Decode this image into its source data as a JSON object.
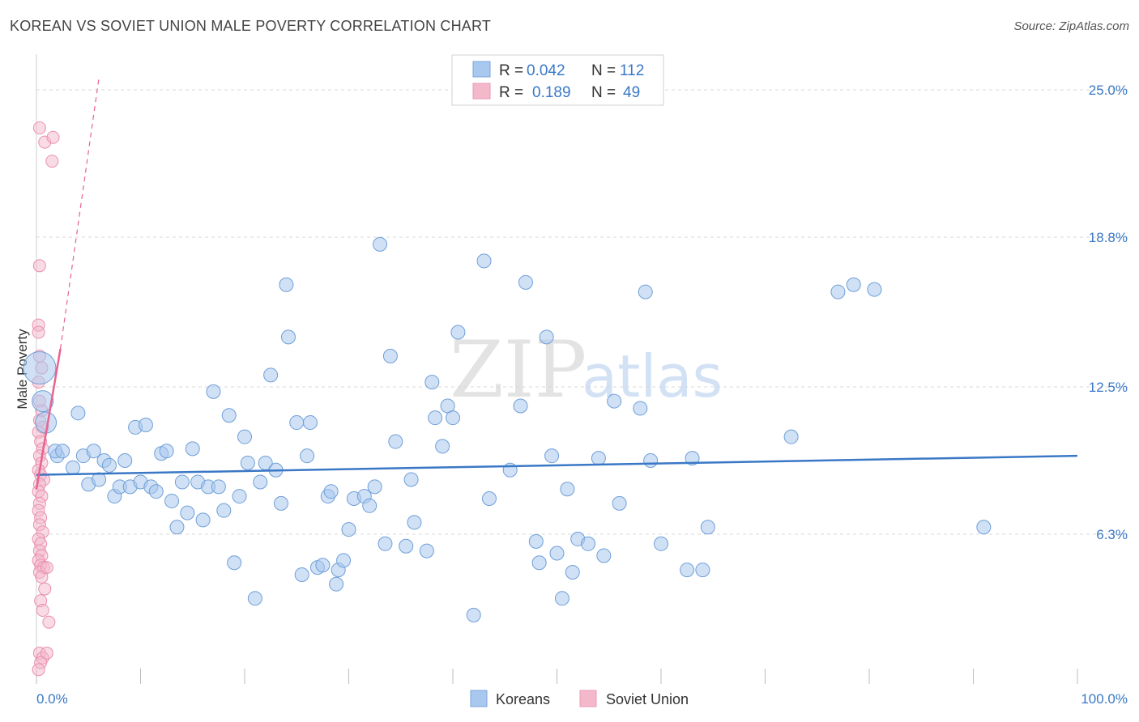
{
  "title": "KOREAN VS SOVIET UNION MALE POVERTY CORRELATION CHART",
  "source": "Source: ZipAtlas.com",
  "watermark": {
    "zip": "ZIP",
    "atlas": "atlas"
  },
  "colors": {
    "blue": "#3a78c6",
    "blue_fill": "#a9c8ef",
    "pink": "#e8638f",
    "pink_fill": "#f4b8cb",
    "grid": "#d8d8d8"
  },
  "chart_data": {
    "type": "scatter",
    "title": "KOREAN VS SOVIET UNION MALE POVERTY CORRELATION CHART",
    "xlabel": "",
    "ylabel": "Male Poverty",
    "xlim": [
      0,
      100
    ],
    "ylim": [
      0,
      26.5
    ],
    "x_tick_labels": [
      "0.0%",
      "100.0%"
    ],
    "y_ticks": [
      {
        "value": 6.3,
        "label": "6.3%"
      },
      {
        "value": 12.5,
        "label": "12.5%"
      },
      {
        "value": 18.8,
        "label": "18.8%"
      },
      {
        "value": 25.0,
        "label": "25.0%"
      }
    ],
    "grid": true,
    "legend_position": "top-center",
    "stats": [
      {
        "r_label": "R =",
        "r": "0.042",
        "n_label": "N =",
        "n": "112"
      },
      {
        "r_label": "R =",
        "r": "0.189",
        "n_label": "N =",
        "n": "49"
      }
    ],
    "series": [
      {
        "name": "Koreans",
        "color": "#3a78c6",
        "trend": {
          "x": [
            0,
            100
          ],
          "y": [
            8.8,
            9.6
          ]
        },
        "points": [
          [
            0.3,
            13.3,
            3
          ],
          [
            0.6,
            11.9,
            2
          ],
          [
            0.9,
            11.0,
            2
          ],
          [
            2.0,
            9.6,
            1
          ],
          [
            1.8,
            9.8,
            1
          ],
          [
            2.5,
            9.8,
            1
          ],
          [
            3.5,
            9.1,
            1
          ],
          [
            4.0,
            11.4,
            1
          ],
          [
            4.5,
            9.6,
            1
          ],
          [
            5.0,
            8.4,
            1
          ],
          [
            5.5,
            9.8,
            1
          ],
          [
            6.0,
            8.6,
            1
          ],
          [
            6.5,
            9.4,
            1
          ],
          [
            7.0,
            9.2,
            1
          ],
          [
            7.5,
            7.9,
            1
          ],
          [
            8.0,
            8.3,
            1
          ],
          [
            8.5,
            9.4,
            1
          ],
          [
            9.0,
            8.3,
            1
          ],
          [
            9.5,
            10.8,
            1
          ],
          [
            10.0,
            8.5,
            1
          ],
          [
            10.5,
            10.9,
            1
          ],
          [
            11.0,
            8.3,
            1
          ],
          [
            11.5,
            8.1,
            1
          ],
          [
            12.0,
            9.7,
            1
          ],
          [
            12.5,
            9.8,
            1
          ],
          [
            13.0,
            7.7,
            1
          ],
          [
            13.5,
            6.6,
            1
          ],
          [
            14.0,
            8.5,
            1
          ],
          [
            14.5,
            7.2,
            1
          ],
          [
            15.0,
            9.9,
            1
          ],
          [
            15.5,
            8.5,
            1
          ],
          [
            16.0,
            6.9,
            1
          ],
          [
            16.5,
            8.3,
            1
          ],
          [
            17.0,
            12.3,
            1
          ],
          [
            17.5,
            8.3,
            1
          ],
          [
            18.0,
            7.3,
            1
          ],
          [
            18.5,
            11.3,
            1
          ],
          [
            19.0,
            5.1,
            1
          ],
          [
            19.5,
            7.9,
            1
          ],
          [
            20.0,
            10.4,
            1
          ],
          [
            20.3,
            9.3,
            1
          ],
          [
            21.0,
            3.6,
            1
          ],
          [
            21.5,
            8.5,
            1
          ],
          [
            22.0,
            9.3,
            1
          ],
          [
            22.5,
            13.0,
            1
          ],
          [
            23.0,
            9.0,
            1
          ],
          [
            23.5,
            7.6,
            1
          ],
          [
            24.0,
            16.8,
            1
          ],
          [
            24.2,
            14.6,
            1
          ],
          [
            25.0,
            11.0,
            1
          ],
          [
            25.5,
            4.6,
            1
          ],
          [
            26.0,
            9.6,
            1
          ],
          [
            26.3,
            11.0,
            1
          ],
          [
            27.0,
            4.9,
            1
          ],
          [
            27.5,
            5.0,
            1
          ],
          [
            28.0,
            7.9,
            1
          ],
          [
            28.3,
            8.1,
            1
          ],
          [
            28.8,
            4.2,
            1
          ],
          [
            29.0,
            4.8,
            1
          ],
          [
            29.5,
            5.2,
            1
          ],
          [
            30.0,
            6.5,
            1
          ],
          [
            30.5,
            7.8,
            1
          ],
          [
            31.5,
            7.9,
            1
          ],
          [
            32.0,
            7.5,
            1
          ],
          [
            32.5,
            8.3,
            1
          ],
          [
            33.0,
            18.5,
            1
          ],
          [
            33.5,
            5.9,
            1
          ],
          [
            34.0,
            13.8,
            1
          ],
          [
            34.5,
            10.2,
            1
          ],
          [
            35.5,
            5.8,
            1
          ],
          [
            36.0,
            8.6,
            1
          ],
          [
            36.3,
            6.8,
            1
          ],
          [
            37.5,
            5.6,
            1
          ],
          [
            38.0,
            12.7,
            1
          ],
          [
            38.3,
            11.2,
            1
          ],
          [
            39.0,
            10.0,
            1
          ],
          [
            39.5,
            11.7,
            1
          ],
          [
            40.0,
            11.2,
            1
          ],
          [
            40.5,
            14.8,
            1
          ],
          [
            42.0,
            2.9,
            1
          ],
          [
            43.0,
            17.8,
            1
          ],
          [
            43.5,
            7.8,
            1
          ],
          [
            45.5,
            9.0,
            1
          ],
          [
            46.5,
            11.7,
            1
          ],
          [
            47.0,
            16.9,
            1
          ],
          [
            48.0,
            6.0,
            1
          ],
          [
            48.3,
            5.1,
            1
          ],
          [
            49.0,
            14.6,
            1
          ],
          [
            49.5,
            9.6,
            1
          ],
          [
            50.0,
            5.5,
            1
          ],
          [
            50.5,
            3.6,
            1
          ],
          [
            51.0,
            8.2,
            1
          ],
          [
            51.5,
            4.7,
            1
          ],
          [
            52.0,
            6.1,
            1
          ],
          [
            53.0,
            5.9,
            1
          ],
          [
            54.0,
            9.5,
            1
          ],
          [
            54.5,
            5.4,
            1
          ],
          [
            55.5,
            11.9,
            1
          ],
          [
            56.0,
            7.6,
            1
          ],
          [
            58.0,
            11.6,
            1
          ],
          [
            58.5,
            16.5,
            1
          ],
          [
            59.0,
            9.4,
            1
          ],
          [
            60.0,
            5.9,
            1
          ],
          [
            62.5,
            4.8,
            1
          ],
          [
            63.0,
            9.5,
            1
          ],
          [
            64.0,
            4.8,
            1
          ],
          [
            64.5,
            6.6,
            1
          ],
          [
            72.5,
            10.4,
            1
          ],
          [
            77.0,
            16.5,
            1
          ],
          [
            78.5,
            16.8,
            1
          ],
          [
            80.5,
            16.6,
            1
          ],
          [
            91.0,
            6.6,
            1
          ]
        ]
      },
      {
        "name": "Soviet Union",
        "color": "#e8638f",
        "trend_solid": {
          "x": [
            0,
            2.3
          ],
          "y": [
            8.2,
            14.1
          ]
        },
        "trend_dashed": {
          "x": [
            2.3,
            6.0
          ],
          "y": [
            14.1,
            25.5
          ]
        },
        "points": [
          [
            0.3,
            23.4
          ],
          [
            0.8,
            22.8
          ],
          [
            1.6,
            23.0
          ],
          [
            1.5,
            22.0
          ],
          [
            0.3,
            17.6
          ],
          [
            0.2,
            15.1
          ],
          [
            0.2,
            14.8
          ],
          [
            0.3,
            13.8
          ],
          [
            0.5,
            13.3
          ],
          [
            0.2,
            12.7
          ],
          [
            0.3,
            11.9
          ],
          [
            0.5,
            11.5
          ],
          [
            0.3,
            11.1
          ],
          [
            0.6,
            10.8
          ],
          [
            0.2,
            10.6
          ],
          [
            0.4,
            10.2
          ],
          [
            0.6,
            9.9
          ],
          [
            0.3,
            9.6
          ],
          [
            0.5,
            9.3
          ],
          [
            0.2,
            9.0
          ],
          [
            0.4,
            8.8
          ],
          [
            0.7,
            8.6
          ],
          [
            0.3,
            8.4
          ],
          [
            0.2,
            8.1
          ],
          [
            0.5,
            7.9
          ],
          [
            0.3,
            7.6
          ],
          [
            0.2,
            7.3
          ],
          [
            0.4,
            7.0
          ],
          [
            0.3,
            6.7
          ],
          [
            0.6,
            6.4
          ],
          [
            0.2,
            6.1
          ],
          [
            0.4,
            5.9
          ],
          [
            0.3,
            5.6
          ],
          [
            0.5,
            5.4
          ],
          [
            0.2,
            5.2
          ],
          [
            0.4,
            5.0
          ],
          [
            0.7,
            4.9
          ],
          [
            0.3,
            4.7
          ],
          [
            0.5,
            4.5
          ],
          [
            1.0,
            4.9
          ],
          [
            0.8,
            4.0
          ],
          [
            0.4,
            3.5
          ],
          [
            0.6,
            3.1
          ],
          [
            1.2,
            2.6
          ],
          [
            0.3,
            1.3
          ],
          [
            0.6,
            1.1
          ],
          [
            1.0,
            1.3
          ],
          [
            0.4,
            0.9
          ],
          [
            0.2,
            0.6
          ]
        ]
      }
    ]
  },
  "bottom_legend": [
    {
      "label": "Koreans"
    },
    {
      "label": "Soviet Union"
    }
  ]
}
